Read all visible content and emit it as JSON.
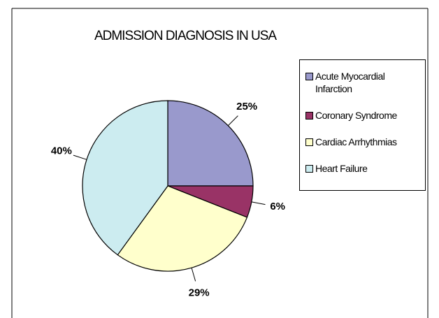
{
  "chart_data": {
    "type": "pie",
    "title": "ADMISSION DIAGNOSIS IN USA",
    "categories": [
      "Acute Myocardial Infarction",
      "Coronary Syndrome",
      "Cardiac Arrhythmias",
      "Heart Failure"
    ],
    "values": [
      25,
      6,
      29,
      40
    ],
    "value_labels": [
      "25%",
      "6%",
      "29%",
      "40%"
    ],
    "colors": [
      "#9999cc",
      "#993366",
      "#ffffcc",
      "#ccecf0"
    ],
    "legend": "right"
  }
}
